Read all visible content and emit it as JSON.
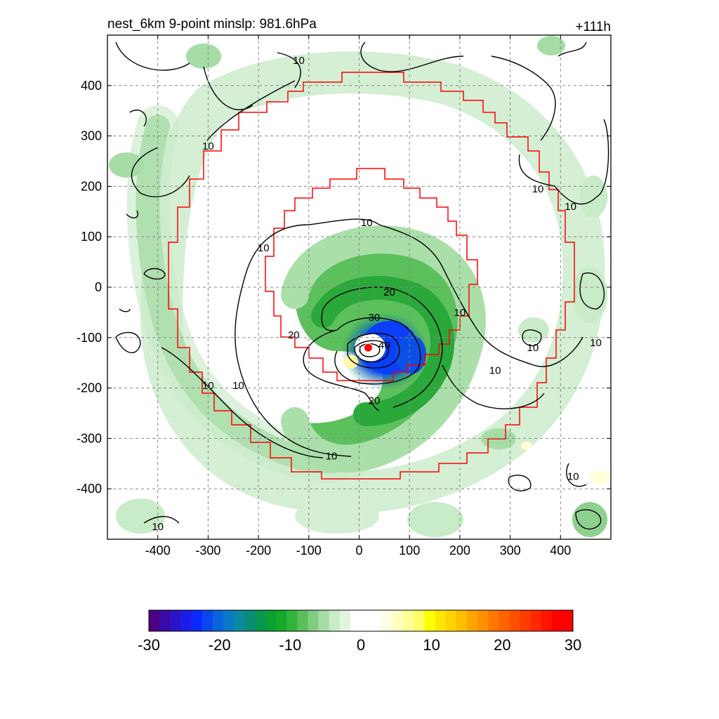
{
  "chart_data": {
    "type": "heatmap",
    "title": "nest_6km  9-point minslp: 981.6hPa",
    "time_label": "+111h",
    "x_ticks": [
      -400,
      -300,
      -200,
      -100,
      0,
      100,
      200,
      300,
      400
    ],
    "y_ticks": [
      400,
      300,
      200,
      100,
      0,
      -100,
      -200,
      -300,
      -400
    ],
    "xlim": [
      -500,
      500
    ],
    "ylim": [
      -500,
      500
    ],
    "grid": true,
    "contour_labels": [
      {
        "x": -120,
        "y": 450,
        "text": "10"
      },
      {
        "x": -300,
        "y": 280,
        "text": "10"
      },
      {
        "x": 15,
        "y": 128,
        "text": "10"
      },
      {
        "x": -190,
        "y": 78,
        "text": "10"
      },
      {
        "x": 355,
        "y": 195,
        "text": "10"
      },
      {
        "x": 420,
        "y": 160,
        "text": "10"
      },
      {
        "x": 200,
        "y": -50,
        "text": "10"
      },
      {
        "x": 345,
        "y": -120,
        "text": "10"
      },
      {
        "x": 270,
        "y": -165,
        "text": "10"
      },
      {
        "x": 470,
        "y": -110,
        "text": "10"
      },
      {
        "x": -300,
        "y": -195,
        "text": "10"
      },
      {
        "x": -240,
        "y": -195,
        "text": "10"
      },
      {
        "x": -55,
        "y": -335,
        "text": "10"
      },
      {
        "x": 425,
        "y": -375,
        "text": "10"
      },
      {
        "x": -400,
        "y": -475,
        "text": "10"
      },
      {
        "x": 60,
        "y": -10,
        "text": "20"
      },
      {
        "x": -130,
        "y": -95,
        "text": "20"
      },
      {
        "x": 30,
        "y": -225,
        "text": "20"
      },
      {
        "x": 30,
        "y": -60,
        "text": "30"
      },
      {
        "x": 50,
        "y": -115,
        "text": "40"
      }
    ],
    "center_marker": {
      "x": 18,
      "y": -120
    },
    "colorbar": {
      "ticks": [
        -30,
        -20,
        -10,
        0,
        10,
        20,
        30
      ],
      "min": -30,
      "max": 30,
      "colors": [
        "#4b0082",
        "#3a0aa8",
        "#2a14c8",
        "#1a1ee6",
        "#0a28ff",
        "#0a46f0",
        "#0a64dc",
        "#0a7ac8",
        "#0a8aa0",
        "#0a8c78",
        "#0a9650",
        "#0aa032",
        "#14aa28",
        "#32b43c",
        "#5abe5a",
        "#82cc82",
        "#a6dca6",
        "#c8ecc8",
        "#e0f4e0",
        "#ffffff",
        "#ffffff",
        "#ffffff",
        "#ffffe6",
        "#ffffc0",
        "#ffff96",
        "#ffff64",
        "#ffff00",
        "#ffe600",
        "#ffd200",
        "#ffbe00",
        "#ffa500",
        "#ff9000",
        "#ff7800",
        "#ff6400",
        "#ff5000",
        "#ff3c00",
        "#ff2800",
        "#ff1400",
        "#ff0000",
        "#ff0000"
      ]
    }
  }
}
